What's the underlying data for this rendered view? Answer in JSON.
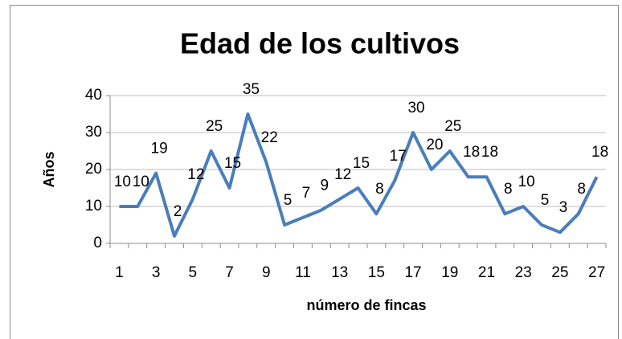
{
  "chart_data": {
    "type": "line",
    "title": "Edad de los cultivos",
    "x_label": "número de fincas",
    "y_label": "Años",
    "categories": [
      1,
      null,
      3,
      null,
      5,
      null,
      7,
      null,
      9,
      null,
      11,
      null,
      13,
      null,
      15,
      null,
      17,
      null,
      19,
      null,
      21,
      null,
      23,
      null,
      25,
      null,
      27
    ],
    "values": [
      10,
      10,
      19,
      2,
      12,
      25,
      15,
      35,
      22,
      5,
      7,
      9,
      12,
      15,
      8,
      17,
      30,
      20,
      25,
      18,
      18,
      8,
      10,
      5,
      3,
      8,
      18
    ],
    "color": "#4a7ebb",
    "ylim": [
      0,
      40
    ],
    "yticks": [
      0,
      10,
      20,
      30,
      40
    ],
    "grid": true
  }
}
